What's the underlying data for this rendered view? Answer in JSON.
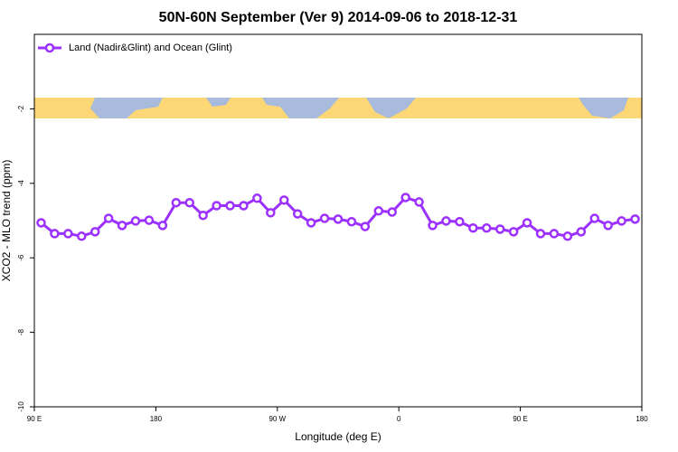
{
  "chart_data": {
    "type": "line",
    "title": "50N-60N September (Ver 9)   2014-09-06 to 2018-12-31",
    "xlabel": "Longitude (deg E)",
    "ylabel": "XCO2 - MLO trend (ppm)",
    "xlim": [
      90,
      540
    ],
    "ylim": [
      -10,
      0
    ],
    "xticks": [
      {
        "value": 90,
        "label": "90 E"
      },
      {
        "value": 180,
        "label": "180"
      },
      {
        "value": 270,
        "label": "90 W"
      },
      {
        "value": 360,
        "label": "0"
      },
      {
        "value": 450,
        "label": "90 E"
      },
      {
        "value": 540,
        "label": "180"
      }
    ],
    "yticks": [
      -10,
      -8,
      -6,
      -4,
      -2
    ],
    "legend_position": "top-left",
    "x": [
      95,
      105,
      115,
      125,
      135,
      145,
      155,
      165,
      175,
      185,
      195,
      205,
      215,
      225,
      235,
      245,
      255,
      265,
      275,
      285,
      295,
      305,
      315,
      325,
      335,
      345,
      355,
      365,
      375,
      385,
      395,
      405,
      415,
      425,
      435,
      445,
      455,
      465,
      475,
      485,
      495,
      505,
      515,
      525,
      535
    ],
    "series": [
      {
        "name": "Land (Nadir&Glint) and Ocean (Glint)",
        "color": "#9b30ff",
        "values": [
          -5.06,
          -5.35,
          -5.35,
          -5.42,
          -5.3,
          -4.94,
          -5.13,
          -5.01,
          -4.99,
          -5.13,
          -4.52,
          -4.52,
          -4.86,
          -4.6,
          -4.6,
          -4.6,
          -4.4,
          -4.79,
          -4.45,
          -4.82,
          -5.06,
          -4.94,
          -4.96,
          -5.03,
          -5.16,
          -4.74,
          -4.77,
          -4.38,
          -4.5,
          -5.13,
          -5.01,
          -5.03,
          -5.2,
          -5.2,
          -5.23,
          -5.3,
          -5.06,
          -5.35,
          -5.35,
          -5.42,
          -5.3,
          -4.94,
          -5.13,
          -5.01,
          -4.96
        ]
      }
    ]
  }
}
